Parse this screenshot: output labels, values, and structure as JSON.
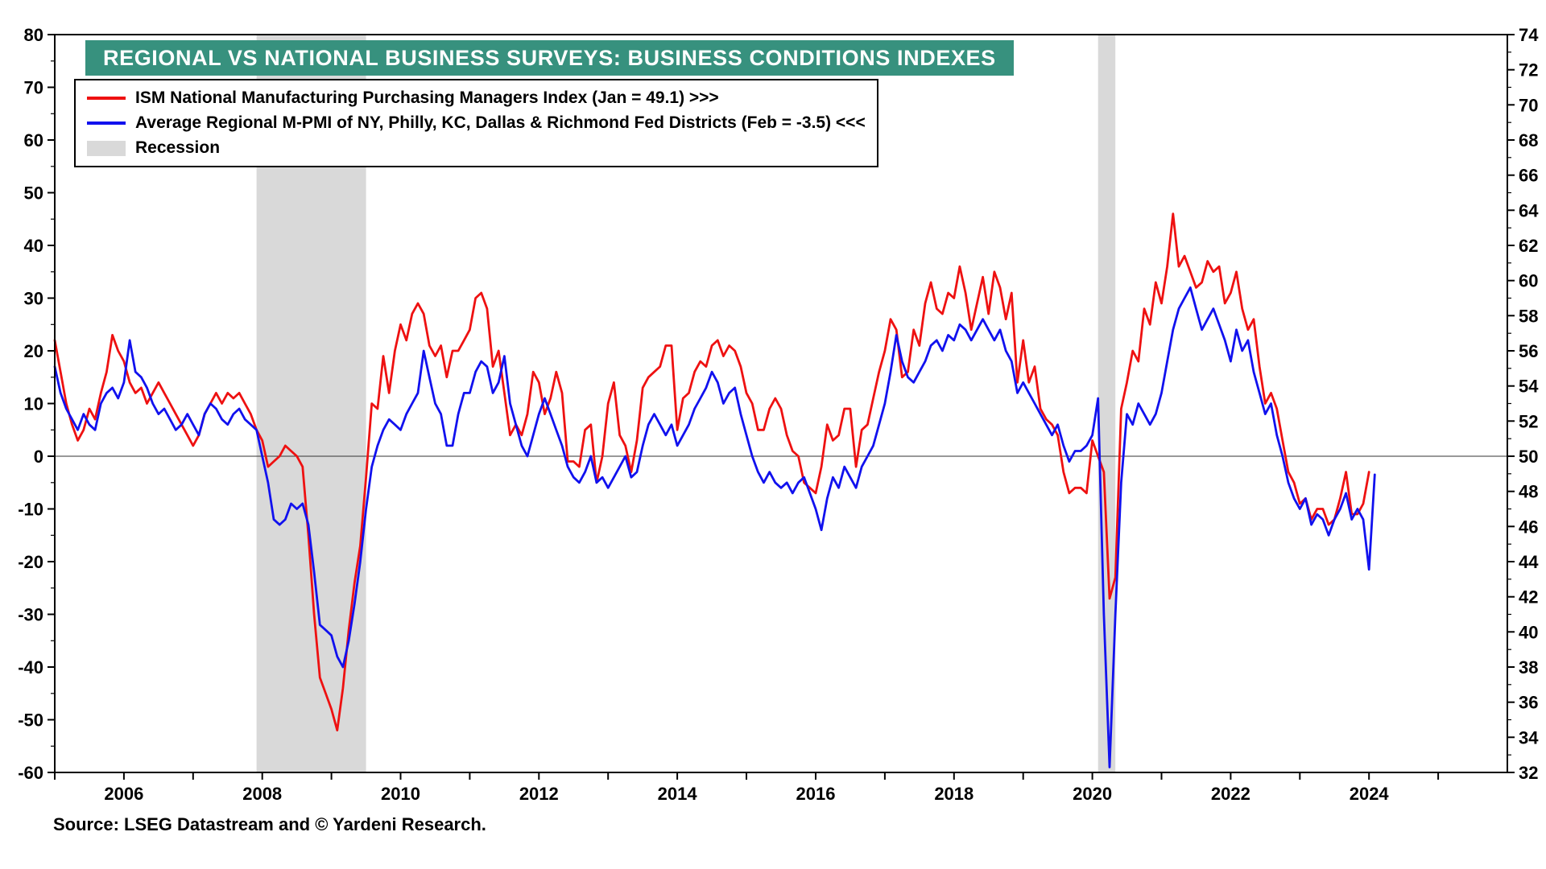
{
  "header": {
    "title": "REGIONAL VS NATIONAL BUSINESS SURVEYS: BUSINESS CONDITIONS INDEXES",
    "banner_color": "#37917e"
  },
  "legend": {
    "items": [
      {
        "label": "ISM National Manufacturing Purchasing Managers Index (Jan = 49.1) >>>",
        "swatch": "line",
        "color": "#ee1111"
      },
      {
        "label": "Average Regional M-PMI of NY, Philly, KC, Dallas & Richmond Fed Districts (Feb = -3.5) <<<",
        "swatch": "line",
        "color": "#1111ee"
      },
      {
        "label": "Recession",
        "swatch": "box",
        "color": "#d9d9d9"
      }
    ]
  },
  "source": "Source: LSEG Datastream and © Yardeni Research.",
  "chart_data": {
    "type": "line",
    "title": "REGIONAL VS NATIONAL BUSINESS SURVEYS: BUSINESS CONDITIONS INDEXES",
    "x_range": [
      2005.0,
      2026.0
    ],
    "x_ticks": [
      2006,
      2008,
      2010,
      2012,
      2014,
      2016,
      2018,
      2020,
      2022,
      2024
    ],
    "left_axis": {
      "min": -60,
      "max": 80,
      "step": 10,
      "minor_step": 5,
      "series": "Average Regional M-PMI"
    },
    "right_axis": {
      "min": 32,
      "max": 74,
      "step": 2,
      "minor_step": 1,
      "series": "ISM M-PMI"
    },
    "grid": "zero-line-only",
    "legend_position": "top-left",
    "recession_color": "#d9d9d9",
    "recessions": [
      [
        2007.917,
        2009.5
      ],
      [
        2020.083,
        2020.333
      ]
    ],
    "series": [
      {
        "name": "ISM National Manufacturing Purchasing Managers Index",
        "axis": "right",
        "color": "#ee1111",
        "start_year": 2005,
        "start_month": 1,
        "frequency": "monthly",
        "latest_label": "Jan = 49.1",
        "values": [
          56.6,
          54.8,
          53.0,
          51.8,
          50.9,
          51.5,
          52.7,
          52.1,
          53.6,
          54.8,
          56.9,
          56.0,
          55.4,
          54.2,
          53.6,
          53.9,
          53.0,
          53.6,
          54.2,
          53.6,
          53.0,
          52.4,
          51.8,
          51.2,
          50.6,
          51.2,
          52.4,
          53.0,
          53.6,
          53.0,
          53.6,
          53.3,
          53.6,
          53.0,
          52.4,
          51.5,
          50.9,
          49.4,
          49.7,
          50.0,
          50.6,
          50.3,
          50.0,
          49.4,
          45.5,
          41.0,
          37.4,
          36.5,
          35.6,
          34.4,
          36.8,
          40.1,
          42.8,
          44.9,
          48.8,
          53.0,
          52.7,
          55.7,
          53.6,
          56.0,
          57.5,
          56.6,
          58.1,
          58.7,
          58.1,
          56.3,
          55.7,
          56.3,
          54.5,
          56.0,
          56.0,
          56.6,
          57.2,
          59.0,
          59.3,
          58.4,
          55.1,
          56.0,
          53.6,
          51.2,
          51.8,
          51.2,
          52.4,
          54.8,
          54.2,
          52.4,
          53.3,
          54.8,
          53.6,
          49.7,
          49.7,
          49.4,
          51.5,
          51.8,
          48.5,
          50.0,
          53.0,
          54.2,
          51.2,
          50.6,
          49.1,
          50.9,
          53.9,
          54.5,
          54.8,
          55.1,
          56.3,
          56.3,
          51.5,
          53.3,
          53.6,
          54.8,
          55.4,
          55.1,
          56.3,
          56.6,
          55.7,
          56.3,
          56.0,
          55.1,
          53.6,
          53.0,
          51.5,
          51.5,
          52.7,
          53.3,
          52.7,
          51.2,
          50.3,
          50.0,
          48.5,
          48.2,
          47.9,
          49.4,
          51.8,
          50.9,
          51.2,
          52.7,
          52.7,
          49.4,
          51.5,
          51.8,
          53.3,
          54.8,
          56.0,
          57.8,
          57.2,
          54.5,
          54.8,
          57.2,
          56.3,
          58.7,
          59.9,
          58.4,
          58.1,
          59.3,
          59.0,
          60.8,
          59.3,
          57.2,
          58.7,
          60.2,
          58.1,
          60.5,
          59.6,
          57.8,
          59.3,
          54.2,
          56.6,
          54.2,
          55.1,
          52.7,
          52.1,
          51.8,
          51.2,
          49.1,
          47.9,
          48.2,
          48.2,
          47.9,
          50.9,
          50.0,
          49.1,
          41.9,
          43.1,
          52.7,
          54.2,
          56.0,
          55.4,
          58.4,
          57.5,
          59.9,
          58.7,
          60.8,
          63.8,
          60.8,
          61.4,
          60.5,
          59.6,
          59.9,
          61.1,
          60.5,
          60.8,
          58.7,
          59.3,
          60.5,
          58.4,
          57.2,
          57.8,
          55.1,
          53.0,
          53.6,
          52.7,
          50.9,
          49.1,
          48.5,
          47.3,
          47.6,
          46.4,
          47.0,
          47.0,
          46.1,
          46.4,
          47.6,
          49.1,
          46.7,
          46.7,
          47.3,
          49.1
        ]
      },
      {
        "name": "Average Regional M-PMI of NY, Philly, KC, Dallas & Richmond Fed Districts",
        "axis": "left",
        "color": "#1111ee",
        "start_year": 2005,
        "start_month": 1,
        "frequency": "monthly",
        "latest_label": "Feb = -3.5",
        "values": [
          17,
          12,
          9,
          7,
          5,
          8,
          6,
          5,
          10,
          12,
          13,
          11,
          14,
          22,
          16,
          15,
          13,
          10,
          8,
          9,
          7,
          5,
          6,
          8,
          6,
          4,
          8,
          10,
          9,
          7,
          6,
          8,
          9,
          7,
          6,
          5,
          0,
          -5,
          -12,
          -13,
          -12,
          -9,
          -10,
          -9,
          -13,
          -22,
          -32,
          -33,
          -34,
          -38,
          -40,
          -35,
          -28,
          -20,
          -10,
          -2,
          2,
          5,
          7,
          6,
          5,
          8,
          10,
          12,
          20,
          15,
          10,
          8,
          2,
          2,
          8,
          12,
          12,
          16,
          18,
          17,
          12,
          14,
          19,
          10,
          6,
          2,
          0,
          4,
          8,
          11,
          8,
          5,
          2,
          -2,
          -4,
          -5,
          -3,
          0,
          -5,
          -4,
          -6,
          -4,
          -2,
          0,
          -4,
          -3,
          2,
          6,
          8,
          6,
          4,
          6,
          2,
          4,
          6,
          9,
          11,
          13,
          16,
          14,
          10,
          12,
          13,
          8,
          4,
          0,
          -3,
          -5,
          -3,
          -5,
          -6,
          -5,
          -7,
          -5,
          -4,
          -7,
          -10,
          -14,
          -8,
          -4,
          -6,
          -2,
          -4,
          -6,
          -2,
          0,
          2,
          6,
          10,
          16,
          23,
          18,
          15,
          14,
          16,
          18,
          21,
          22,
          20,
          23,
          22,
          25,
          24,
          22,
          24,
          26,
          24,
          22,
          24,
          20,
          18,
          12,
          14,
          12,
          10,
          8,
          6,
          4,
          6,
          2,
          -1,
          1,
          1,
          2,
          4,
          11,
          -30,
          -59,
          -30,
          -5,
          8,
          6,
          10,
          8,
          6,
          8,
          12,
          18,
          24,
          28,
          30,
          32,
          28,
          24,
          26,
          28,
          25,
          22,
          18,
          24,
          20,
          22,
          16,
          12,
          8,
          10,
          4,
          0,
          -5,
          -8,
          -10,
          -8,
          -13,
          -11,
          -12,
          -15,
          -12,
          -10,
          -7,
          -12,
          -10,
          -12,
          -21.5,
          -3.5
        ]
      }
    ]
  }
}
